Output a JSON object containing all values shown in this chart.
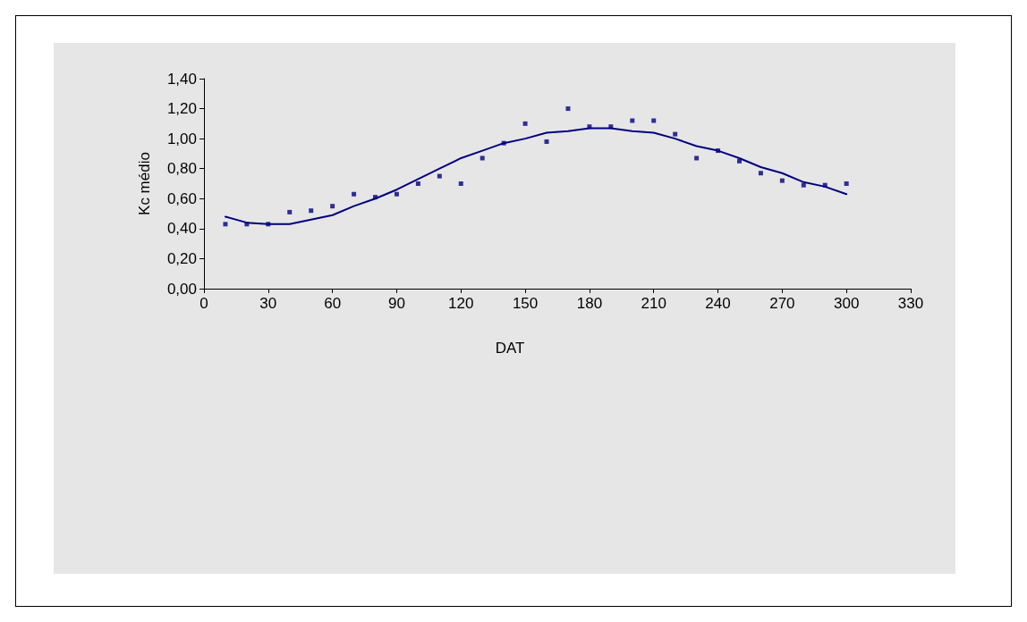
{
  "chart_data": {
    "type": "scatter",
    "xlabel": "DAT",
    "ylabel": "Kc médio",
    "marker": "square",
    "grid": false,
    "xlim": [
      0,
      330
    ],
    "xticks": [
      0,
      30,
      60,
      90,
      120,
      150,
      180,
      210,
      240,
      270,
      300,
      330
    ],
    "ylim": [
      0,
      1.4
    ],
    "yticks": [
      {
        "value": 0,
        "label": "0,00"
      },
      {
        "value": 0.2,
        "label": "0,20"
      },
      {
        "value": 0.4,
        "label": "0,40"
      },
      {
        "value": 0.6,
        "label": "0,60"
      },
      {
        "value": 0.8,
        "label": "0,80"
      },
      {
        "value": 1.0,
        "label": "1,00"
      },
      {
        "value": 1.2,
        "label": "1,20"
      },
      {
        "value": 1.4,
        "label": "1,40"
      }
    ],
    "series": [
      {
        "color": "#000080",
        "x": [
          10,
          20,
          30,
          40,
          50,
          60,
          70,
          80,
          90,
          100,
          110,
          120,
          130,
          140,
          150,
          160,
          170,
          180,
          190,
          200,
          210,
          220,
          230,
          240,
          250,
          260,
          270,
          280,
          290,
          300
        ],
        "values": [
          0.43,
          0.43,
          0.43,
          0.51,
          0.52,
          0.55,
          0.63,
          0.61,
          0.63,
          0.7,
          0.75,
          0.7,
          0.87,
          0.97,
          1.1,
          0.98,
          1.2,
          1.08,
          1.08,
          1.12,
          1.12,
          1.03,
          0.87,
          0.92,
          0.85,
          0.77,
          0.72,
          0.69,
          0.69,
          0.7
        ]
      },
      {
        "type": "line",
        "color": "#000080",
        "marker": "none",
        "line_style": "solid",
        "x": [
          10,
          20,
          30,
          40,
          50,
          60,
          70,
          80,
          90,
          100,
          110,
          120,
          130,
          140,
          150,
          160,
          170,
          180,
          190,
          200,
          210,
          220,
          230,
          240,
          250,
          260,
          270,
          280,
          290,
          300
        ],
        "values": [
          0.48,
          0.44,
          0.43,
          0.43,
          0.46,
          0.49,
          0.55,
          0.6,
          0.66,
          0.73,
          0.8,
          0.87,
          0.92,
          0.97,
          1.0,
          1.04,
          1.05,
          1.07,
          1.07,
          1.05,
          1.04,
          1.0,
          0.95,
          0.92,
          0.87,
          0.81,
          0.77,
          0.71,
          0.68,
          0.63
        ]
      }
    ]
  }
}
